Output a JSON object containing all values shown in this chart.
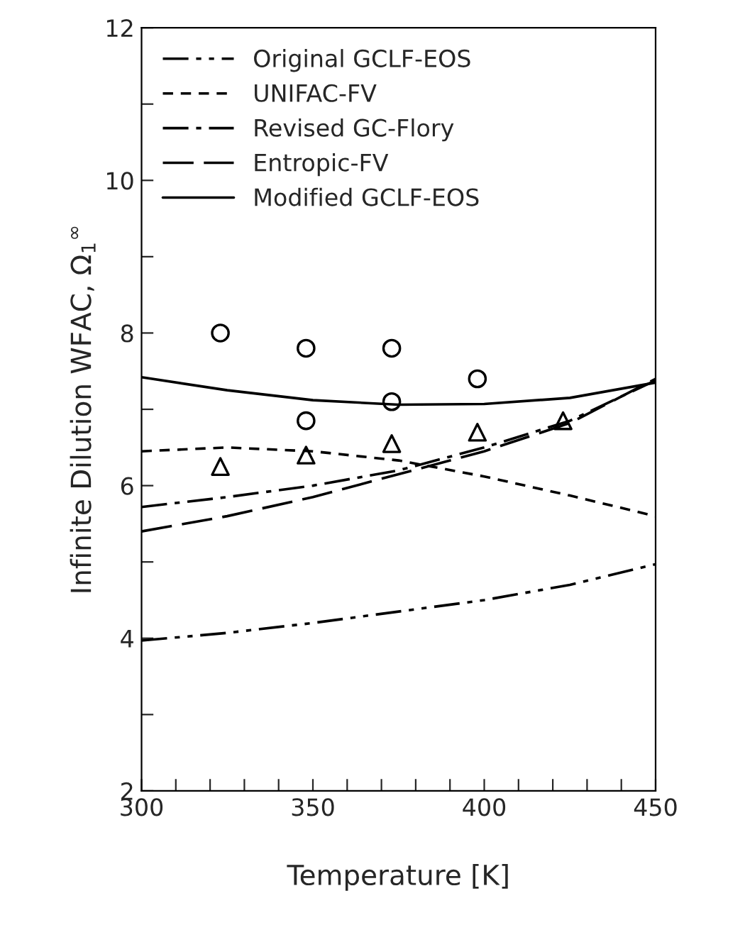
{
  "chart_data": {
    "type": "line",
    "xlabel": "Temperature [K]",
    "ylabel": "Infinite Dilution WFAC, Ω$_{1}$$^{∞}$",
    "xlim": [
      300,
      450
    ],
    "ylim": [
      2,
      12
    ],
    "xticks": [
      300,
      {
        "value": 310,
        "label": null
      },
      {
        "value": 320,
        "label": null
      },
      {
        "value": 330,
        "label": null
      },
      {
        "value": 340,
        "label": null
      },
      350,
      {
        "value": 360,
        "label": null
      },
      {
        "value": 370,
        "label": null
      },
      {
        "value": 380,
        "label": null
      },
      {
        "value": 390,
        "label": null
      },
      400,
      {
        "value": 410,
        "label": null
      },
      {
        "value": 420,
        "label": null
      },
      {
        "value": 430,
        "label": null
      },
      {
        "value": 440,
        "label": null
      },
      450
    ],
    "yticks": [
      2,
      {
        "value": 3,
        "label": null
      },
      4,
      {
        "value": 5,
        "label": null
      },
      6,
      {
        "value": 7,
        "label": null
      },
      8,
      {
        "value": 9,
        "label": null
      },
      10,
      {
        "value": 11,
        "label": null
      },
      12
    ],
    "grid": false,
    "legend": "top left",
    "series": [
      {
        "name": "Original GCLF-EOS",
        "color": "#000000",
        "line_style": "dashdotdot",
        "marker": "none",
        "x": [
          300,
          325,
          350,
          375,
          400,
          425,
          450
        ],
        "values": [
          3.97,
          4.07,
          4.2,
          4.35,
          4.5,
          4.7,
          4.97
        ]
      },
      {
        "name": "UNIFAC-FV",
        "color": "#000000",
        "line_style": "dashed",
        "marker": "none",
        "x": [
          300,
          325,
          350,
          375,
          400,
          425,
          450
        ],
        "values": [
          6.45,
          6.5,
          6.45,
          6.33,
          6.12,
          5.87,
          5.6
        ]
      },
      {
        "name": "Revised GC-Flory",
        "color": "#000000",
        "line_style": "dashdot",
        "marker": "none",
        "x": [
          300,
          325,
          350,
          375,
          400,
          425,
          450
        ],
        "values": [
          5.72,
          5.85,
          6.0,
          6.2,
          6.5,
          6.85,
          7.38
        ]
      },
      {
        "name": "Entropic-FV",
        "color": "#000000",
        "line_style": "longdash",
        "marker": "none",
        "x": [
          300,
          325,
          350,
          375,
          400,
          425,
          450
        ],
        "values": [
          5.4,
          5.6,
          5.85,
          6.15,
          6.45,
          6.82,
          7.4
        ]
      },
      {
        "name": "Modified GCLF-EOS",
        "color": "#000000",
        "line_style": "solid",
        "marker": "none",
        "x": [
          300,
          325,
          350,
          375,
          400,
          425,
          450
        ],
        "values": [
          7.42,
          7.25,
          7.12,
          7.06,
          7.07,
          7.15,
          7.35
        ]
      },
      {
        "type": "scatter",
        "color": "#000000",
        "marker": "circle",
        "x": [
          323,
          348,
          348,
          373,
          373,
          398
        ],
        "values": [
          8.0,
          7.8,
          6.85,
          7.8,
          7.1,
          7.4
        ]
      },
      {
        "type": "scatter",
        "color": "#000000",
        "marker": "triangle",
        "x": [
          323,
          348,
          373,
          398,
          423
        ],
        "values": [
          6.25,
          6.4,
          6.55,
          6.7,
          6.85
        ]
      }
    ]
  }
}
